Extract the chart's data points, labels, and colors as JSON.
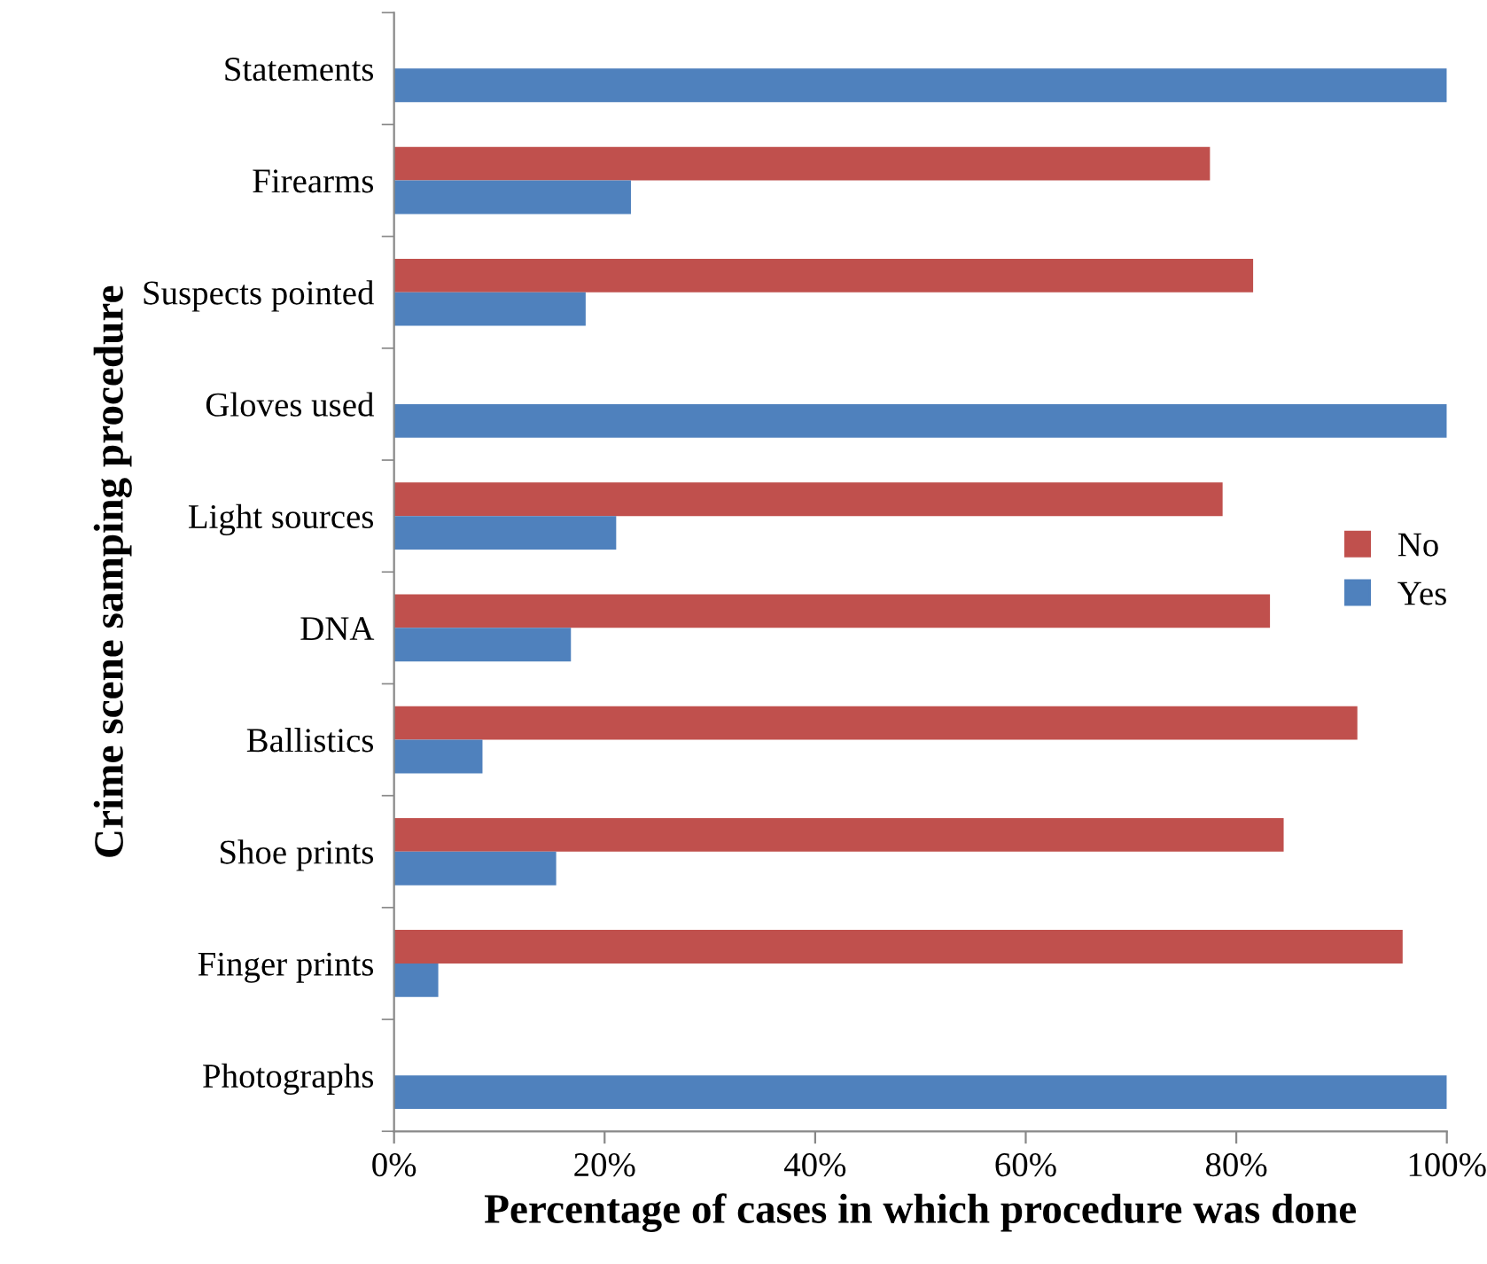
{
  "chart_data": {
    "type": "bar",
    "orientation": "horizontal",
    "xlabel": "Percentage of cases in which procedure was done",
    "ylabel": "Crime scene samping procedure",
    "categories": [
      "Statements",
      "Firearms",
      "Suspects pointed",
      "Gloves used",
      "Light sources",
      "DNA",
      "Ballistics",
      "Shoe prints",
      "Finger prints",
      "Photographs"
    ],
    "series": [
      {
        "name": "No",
        "color": "#c0504d",
        "values": [
          null,
          77.5,
          81.6,
          null,
          78.7,
          83.2,
          91.5,
          84.5,
          95.8,
          null
        ]
      },
      {
        "name": "Yes",
        "color": "#4f81bd",
        "values": [
          100,
          22.5,
          18.2,
          100,
          21.1,
          16.8,
          8.4,
          15.4,
          4.2,
          100
        ]
      }
    ],
    "xlim": [
      0,
      100
    ],
    "xticks": [
      {
        "value": 0,
        "label": "0%"
      },
      {
        "value": 20,
        "label": "20%"
      },
      {
        "value": 40,
        "label": "40%"
      },
      {
        "value": 60,
        "label": "60%"
      },
      {
        "value": 80,
        "label": "80%"
      },
      {
        "value": 100,
        "label": "100%"
      }
    ],
    "grid": false,
    "legend": "right"
  }
}
